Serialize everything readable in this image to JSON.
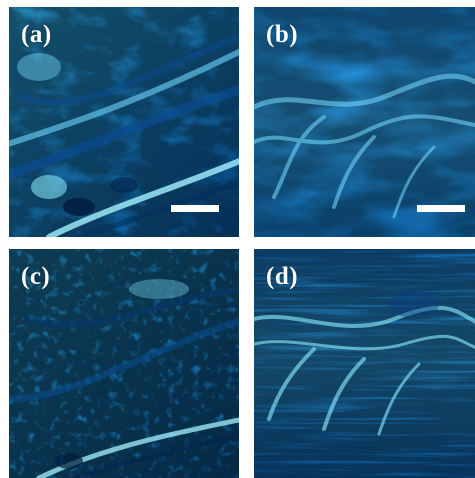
{
  "figure": {
    "panels": [
      {
        "label": "(a)",
        "has_scale_bar": true,
        "texture": "coarse-bright-streaks"
      },
      {
        "label": "(b)",
        "has_scale_bar": true,
        "texture": "smooth-wavy-fibers"
      },
      {
        "label": "(c)",
        "has_scale_bar": false,
        "texture": "noisy-streaks"
      },
      {
        "label": "(d)",
        "has_scale_bar": false,
        "texture": "wavy-arcs-streaked"
      }
    ],
    "colors": {
      "base": "#0b7fd1",
      "dark": "#04305e",
      "bright": "#8ff0ff",
      "scale_bar": "#ffffff"
    }
  }
}
